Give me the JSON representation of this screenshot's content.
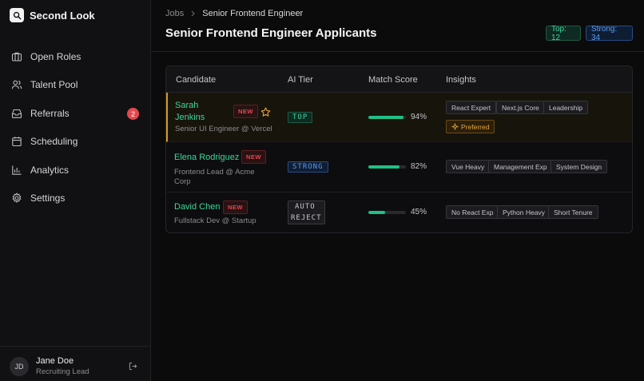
{
  "app": {
    "name": "Second Look"
  },
  "sidebar": {
    "items": [
      {
        "label": "Open Roles",
        "icon": "briefcase-icon"
      },
      {
        "label": "Talent Pool",
        "icon": "users-icon"
      },
      {
        "label": "Referrals",
        "icon": "inbox-icon",
        "badge": "2"
      },
      {
        "label": "Scheduling",
        "icon": "calendar-icon"
      },
      {
        "label": "Analytics",
        "icon": "chart-icon"
      },
      {
        "label": "Settings",
        "icon": "gear-icon"
      }
    ]
  },
  "user": {
    "initials": "JD",
    "name": "Jane Doe",
    "role": "Recruiting Lead"
  },
  "header": {
    "breadcrumb": {
      "parent": "Jobs",
      "current": "Senior Frontend Engineer"
    },
    "title": "Senior Frontend Engineer Applicants",
    "stats": {
      "top": "Top: 12",
      "strong": "Strong: 34"
    }
  },
  "table": {
    "columns": [
      "Candidate",
      "AI Tier",
      "Match Score",
      "Insights"
    ],
    "rows": [
      {
        "name_line1": "Sarah",
        "name_line2": "Jenkins",
        "subtitle": "Senior UI Engineer @ Vercel",
        "badge": "NEW",
        "starred": true,
        "tier": "TOP",
        "score_value": 0.94,
        "score": "94%",
        "tags": [
          "React Expert",
          "Next.js Core",
          "Leadership"
        ],
        "preferred": "Preferred"
      },
      {
        "name": "Elena Rodriguez",
        "subtitle_line1": "Frontend Lead @ Acme",
        "subtitle_line2": "Corp",
        "badge": "NEW",
        "tier": "STRONG",
        "score_value": 0.82,
        "score": "82%",
        "tags": [
          "Vue Heavy",
          "Management Exp",
          "System Design"
        ]
      },
      {
        "name": "David Chen",
        "subtitle": "Fullstack Dev @ Startup",
        "badge": "NEW",
        "tier_line1": "AUTO",
        "tier_line2": "REJECT",
        "score_value": 0.45,
        "score": "45%",
        "tags": [
          "No React Exp",
          "Python Heavy",
          "Short Tenure"
        ]
      }
    ]
  },
  "colors": {
    "accent_green": "#3fd69b",
    "accent_blue": "#5b9cf2",
    "accent_amber": "#d69a1f",
    "badge_red": "#e5484d"
  }
}
